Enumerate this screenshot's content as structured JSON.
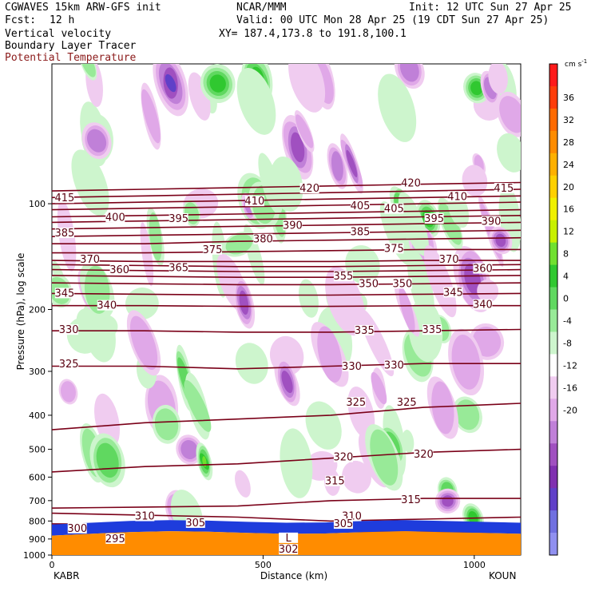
{
  "header": {
    "model": "CGWAVES 15km ARW-GFS init",
    "center": "NCAR/MMM",
    "init": "Init: 12 UTC Sun 27 Apr 25",
    "fcst_label": "Fcst:",
    "fcst_value": "12 h",
    "valid": "Valid: 00 UTC Mon 28 Apr 25 (19 CDT Sun 27 Apr 25)",
    "field1": "Vertical velocity",
    "field2": "Boundary Layer Tracer",
    "field3": "Potential Temperature",
    "xy": "XY= 187.4,173.8 to 191.8,100.1"
  },
  "colors": {
    "theta": "#7a0018",
    "field3_text": "#8b1a1a",
    "terrain": "#ff8c00",
    "bl_tracer": "#1e3cdc"
  },
  "chart_data": {
    "type": "heatmap",
    "title": "Vertical velocity",
    "ylabel": "Pressure (hPa), log scale",
    "xlabel": "Distance (km)",
    "ylim": [
      1000,
      40
    ],
    "xlim": [
      0,
      1110
    ],
    "yscale": "log",
    "yticks": [
      100,
      200,
      300,
      400,
      500,
      600,
      700,
      800,
      900,
      1000
    ],
    "xticks": [
      0,
      500,
      1000
    ],
    "x_endpoints": [
      "KABR",
      "KOUN"
    ],
    "colorbar": {
      "unit": "cm s",
      "unit_exp": "-1",
      "ticks": [
        36,
        32,
        28,
        24,
        20,
        16,
        12,
        8,
        4,
        0,
        -4,
        -8,
        -12,
        -16,
        -20
      ],
      "colors": [
        "#ff1a1a",
        "#ff3d0a",
        "#ff6a00",
        "#ff8c00",
        "#ffb000",
        "#ffd000",
        "#f0f000",
        "#c8f000",
        "#70e030",
        "#30c830",
        "#60d860",
        "#98ea98",
        "#cdf5cd",
        "#ffffff",
        "#f0ccf0",
        "#e0a8e8",
        "#c080d8",
        "#a050c0",
        "#8030b0",
        "#6040c8",
        "#7070e0",
        "#9090f0"
      ]
    },
    "contours_theta": [
      {
        "value": 295,
        "p": [
          940,
          900,
          880,
          880,
          900,
          920
        ]
      },
      {
        "value": 300,
        "p": [
          850,
          850,
          852,
          858,
          860,
          862
        ]
      },
      {
        "value": 305,
        "p": [
          815,
          818,
          820,
          822,
          820,
          818
        ]
      },
      {
        "value": 310,
        "p": [
          760,
          770,
          780,
          800,
          790,
          780
        ]
      },
      {
        "value": 315,
        "p": [
          735,
          730,
          725,
          700,
          690,
          690
        ]
      },
      {
        "value": 320,
        "p": [
          580,
          560,
          550,
          530,
          510,
          500
        ]
      },
      {
        "value": 325,
        "p": [
          440,
          420,
          410,
          400,
          380,
          370
        ]
      },
      {
        "value": 330,
        "p": [
          290,
          290,
          295,
          290,
          285,
          285
        ]
      },
      {
        "value": 335,
        "p": [
          230,
          230,
          232,
          232,
          230,
          228
        ]
      },
      {
        "value": 340,
        "p": [
          195,
          195,
          196,
          196,
          195,
          195
        ]
      },
      {
        "value": 345,
        "p": [
          180,
          181,
          182,
          182,
          181,
          180
        ]
      },
      {
        "value": 350,
        "p": [
          168,
          169,
          170,
          170,
          169,
          168
        ]
      },
      {
        "value": 355,
        "p": [
          160,
          161,
          162,
          162,
          161,
          160
        ]
      },
      {
        "value": 360,
        "p": [
          154,
          155,
          156,
          156,
          155,
          154
        ]
      },
      {
        "value": 365,
        "p": [
          149,
          150,
          151,
          151,
          150,
          149
        ]
      },
      {
        "value": 370,
        "p": [
          145,
          146,
          146,
          146,
          145,
          145
        ]
      },
      {
        "value": 375,
        "p": [
          138,
          138,
          137,
          136,
          135,
          135
        ]
      },
      {
        "value": 380,
        "p": [
          130,
          130,
          128,
          127,
          126,
          125
        ]
      },
      {
        "value": 385,
        "p": [
          124,
          123,
          122,
          121,
          120,
          119
        ]
      },
      {
        "value": 390,
        "p": [
          118,
          117,
          116,
          115,
          114,
          113
        ]
      },
      {
        "value": 395,
        "p": [
          113,
          112,
          111,
          110,
          109,
          108
        ]
      },
      {
        "value": 400,
        "p": [
          109,
          108,
          107,
          106,
          105,
          104
        ]
      },
      {
        "value": 405,
        "p": [
          104,
          103,
          102,
          101,
          100,
          99
        ]
      },
      {
        "value": 410,
        "p": [
          100,
          99,
          98,
          97,
          96,
          95
        ]
      },
      {
        "value": 415,
        "p": [
          96,
          95,
          94,
          93,
          92,
          91
        ]
      },
      {
        "value": 420,
        "p": [
          92,
          91,
          90,
          89,
          88,
          87
        ]
      }
    ],
    "contour_x": [
      0,
      220,
      440,
      660,
      880,
      1110
    ],
    "labels": [
      {
        "text": "415",
        "x": 30,
        "p": 97
      },
      {
        "text": "400",
        "x": 150,
        "p": 110
      },
      {
        "text": "395",
        "x": 300,
        "p": 111
      },
      {
        "text": "410",
        "x": 480,
        "p": 99
      },
      {
        "text": "420",
        "x": 610,
        "p": 91
      },
      {
        "text": "420",
        "x": 850,
        "p": 88
      },
      {
        "text": "415",
        "x": 1070,
        "p": 91
      },
      {
        "text": "405",
        "x": 730,
        "p": 102
      },
      {
        "text": "405",
        "x": 810,
        "p": 104
      },
      {
        "text": "410",
        "x": 960,
        "p": 96
      },
      {
        "text": "385",
        "x": 30,
        "p": 122
      },
      {
        "text": "390",
        "x": 570,
        "p": 116
      },
      {
        "text": "395",
        "x": 905,
        "p": 111
      },
      {
        "text": "390",
        "x": 1040,
        "p": 113
      },
      {
        "text": "380",
        "x": 500,
        "p": 127
      },
      {
        "text": "385",
        "x": 730,
        "p": 121
      },
      {
        "text": "375",
        "x": 380,
        "p": 136
      },
      {
        "text": "375",
        "x": 810,
        "p": 135
      },
      {
        "text": "370",
        "x": 90,
        "p": 145
      },
      {
        "text": "370",
        "x": 940,
        "p": 145
      },
      {
        "text": "360",
        "x": 160,
        "p": 155
      },
      {
        "text": "365",
        "x": 300,
        "p": 153
      },
      {
        "text": "360",
        "x": 1020,
        "p": 154
      },
      {
        "text": "355",
        "x": 690,
        "p": 162
      },
      {
        "text": "350",
        "x": 750,
        "p": 170
      },
      {
        "text": "350",
        "x": 830,
        "p": 170
      },
      {
        "text": "345",
        "x": 30,
        "p": 181
      },
      {
        "text": "345",
        "x": 950,
        "p": 180
      },
      {
        "text": "340",
        "x": 130,
        "p": 196
      },
      {
        "text": "340",
        "x": 1020,
        "p": 195
      },
      {
        "text": "330",
        "x": 40,
        "p": 230
      },
      {
        "text": "335",
        "x": 740,
        "p": 231
      },
      {
        "text": "335",
        "x": 900,
        "p": 230
      },
      {
        "text": "325",
        "x": 40,
        "p": 288
      },
      {
        "text": "330",
        "x": 710,
        "p": 292
      },
      {
        "text": "330",
        "x": 810,
        "p": 290
      },
      {
        "text": "325",
        "x": 720,
        "p": 370
      },
      {
        "text": "325",
        "x": 840,
        "p": 370
      },
      {
        "text": "320",
        "x": 690,
        "p": 530
      },
      {
        "text": "320",
        "x": 880,
        "p": 520
      },
      {
        "text": "315",
        "x": 670,
        "p": 620
      },
      {
        "text": "315",
        "x": 850,
        "p": 700
      },
      {
        "text": "310",
        "x": 220,
        "p": 780
      },
      {
        "text": "305",
        "x": 340,
        "p": 815
      },
      {
        "text": "310",
        "x": 710,
        "p": 780
      },
      {
        "text": "305",
        "x": 690,
        "p": 820
      },
      {
        "text": "300",
        "x": 60,
        "p": 845
      },
      {
        "text": "295",
        "x": 150,
        "p": 905
      },
      {
        "text": "302",
        "x": 560,
        "p": 970
      },
      {
        "text": "L",
        "x": 560,
        "p": 900
      }
    ],
    "terrain_p": [
      880,
      870,
      860,
      855,
      858,
      865,
      870,
      868,
      860,
      855,
      860,
      865,
      870
    ]
  }
}
